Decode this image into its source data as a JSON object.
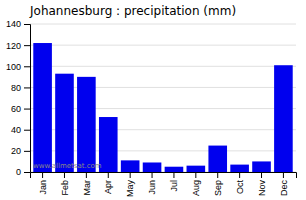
{
  "chart_data": {
    "type": "bar",
    "title": "Johannesburg : precipitation (mm)",
    "categories": [
      "Jan",
      "Feb",
      "Mar",
      "Apr",
      "May",
      "Jun",
      "Jul",
      "Aug",
      "Sep",
      "Oct",
      "Nov",
      "Dec"
    ],
    "values": [
      122,
      93,
      90,
      52,
      11,
      9,
      5,
      6,
      25,
      7,
      10,
      101
    ],
    "color": "#0000ee",
    "ylim": [
      0,
      140
    ],
    "yticks": [
      0,
      20,
      40,
      60,
      80,
      100,
      120,
      140
    ],
    "grid": true,
    "annotations": [
      "www.allmetsat.com"
    ]
  }
}
